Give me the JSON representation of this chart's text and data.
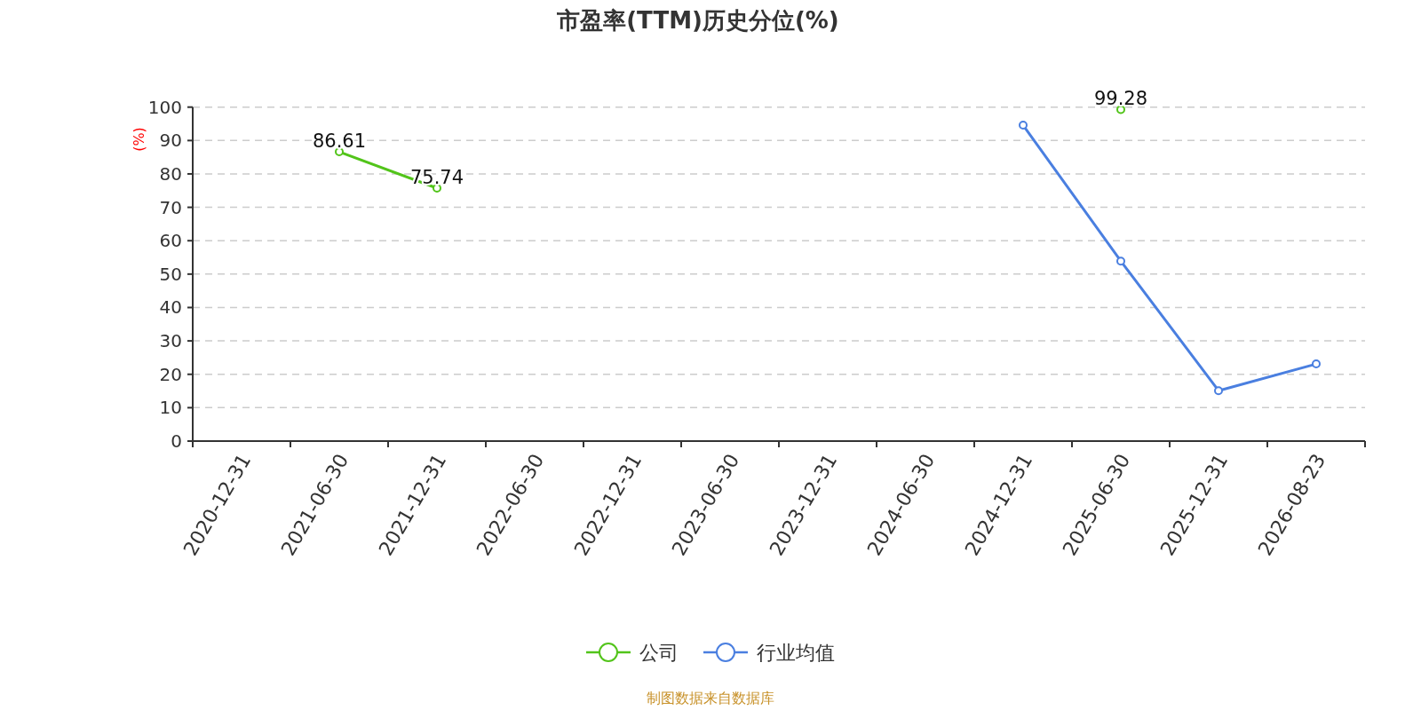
{
  "chart_data": {
    "type": "line",
    "title": "市盈率(TTM)历史分位(%)",
    "ylabel": "(%)",
    "categories": [
      "2020-12-31",
      "2021-06-30",
      "2021-12-31",
      "2022-06-30",
      "2022-12-31",
      "2023-06-30",
      "2023-12-31",
      "2024-06-30",
      "2024-12-31",
      "2025-06-30",
      "2025-12-31",
      "2026-08-23"
    ],
    "ylim": [
      0,
      100
    ],
    "yticks": [
      0,
      10,
      20,
      30,
      40,
      50,
      60,
      70,
      80,
      90,
      100
    ],
    "grid": "y",
    "legend": "bottom",
    "marker": "circle",
    "line_style": "solid",
    "series": [
      {
        "name": "公司",
        "color": "#52c41a",
        "values": [
          null,
          86.61,
          75.74,
          null,
          null,
          null,
          null,
          null,
          null,
          99.28,
          null,
          null
        ],
        "value_labels": [
          null,
          "86.61",
          "75.74",
          null,
          null,
          null,
          null,
          null,
          null,
          "99.28",
          null,
          null
        ]
      },
      {
        "name": "行业均值",
        "color": "#4a7fe0",
        "values": [
          null,
          null,
          null,
          null,
          null,
          null,
          null,
          null,
          94.6,
          53.9,
          15.1,
          23.1
        ]
      }
    ],
    "annotations": [
      "制图数据来自数据库"
    ]
  }
}
